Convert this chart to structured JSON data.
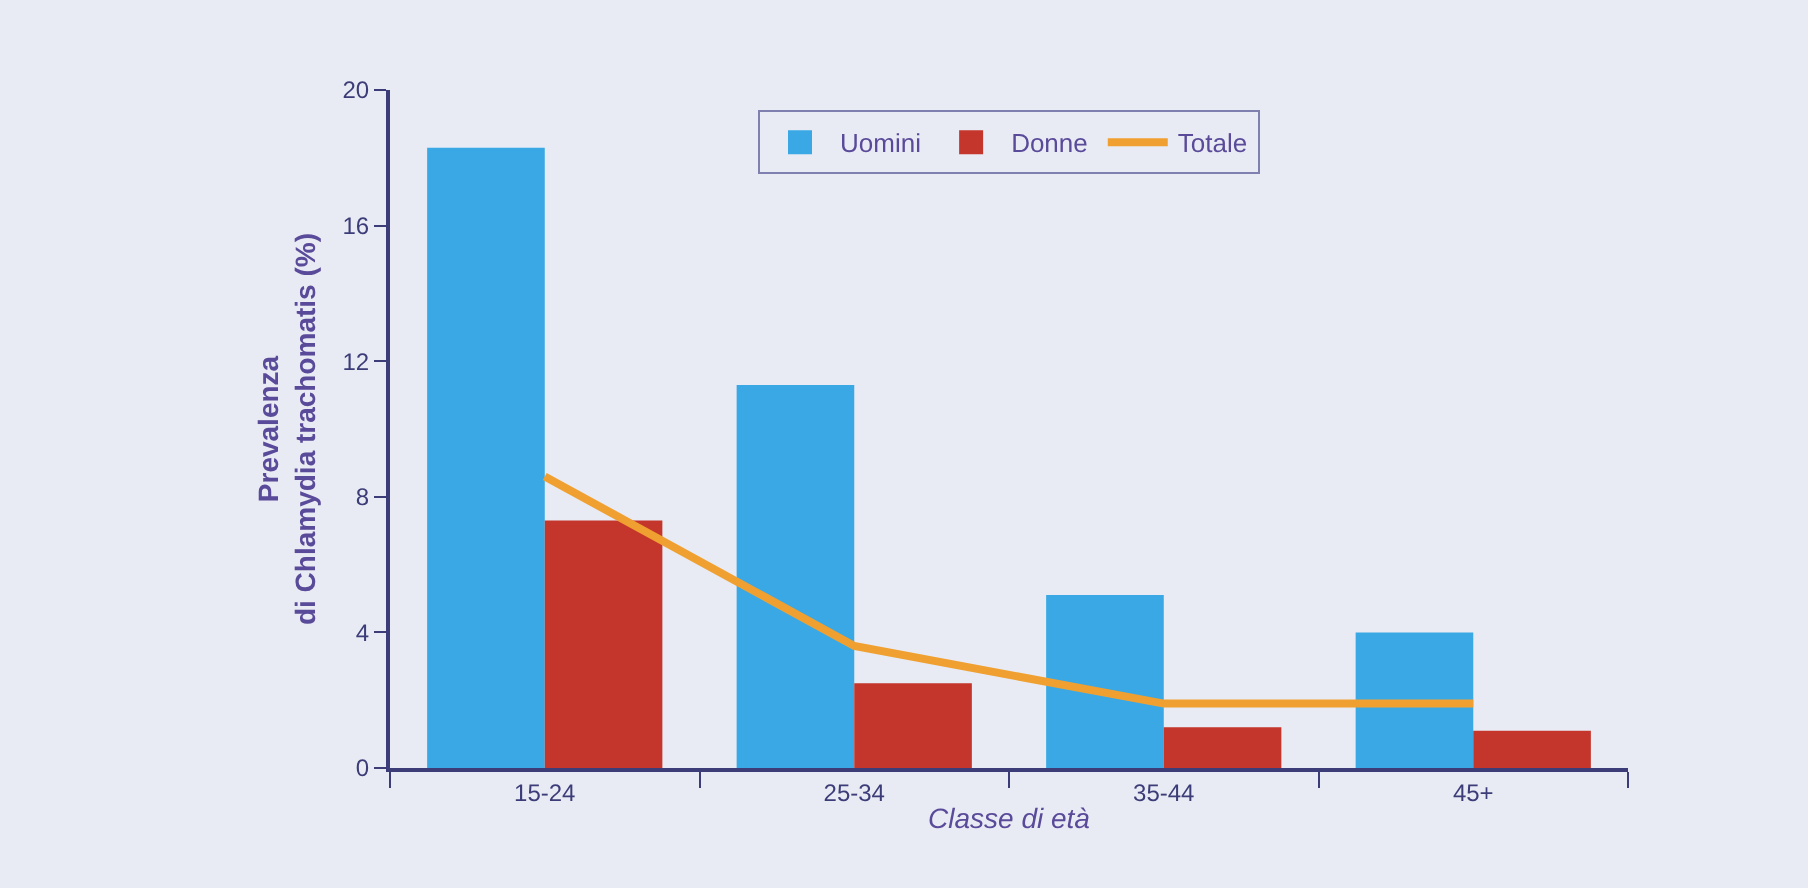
{
  "chart_data": {
    "type": "bar",
    "xlabel": "Classe di età",
    "ylabel": "Prevalenza\ndi Chlamydia trachomatis (%)",
    "categories": [
      "15-24",
      "25-34",
      "35-44",
      "45+"
    ],
    "series": [
      {
        "name": "Uomini",
        "color": "#3aa8e4",
        "values": [
          18.3,
          11.3,
          5.1,
          4.0
        ]
      },
      {
        "name": "Donne",
        "color": "#c4352b",
        "values": [
          7.3,
          2.5,
          1.2,
          1.1
        ]
      },
      {
        "name": "Totale",
        "type": "line",
        "color": "#f0a030",
        "values": [
          8.6,
          3.6,
          1.9,
          1.9
        ]
      }
    ],
    "ylim": [
      0,
      20
    ],
    "yticks": [
      0,
      4,
      8,
      12,
      16,
      20
    ],
    "grid": false,
    "legend": "top",
    "marker": "none",
    "line_style": "solid"
  }
}
